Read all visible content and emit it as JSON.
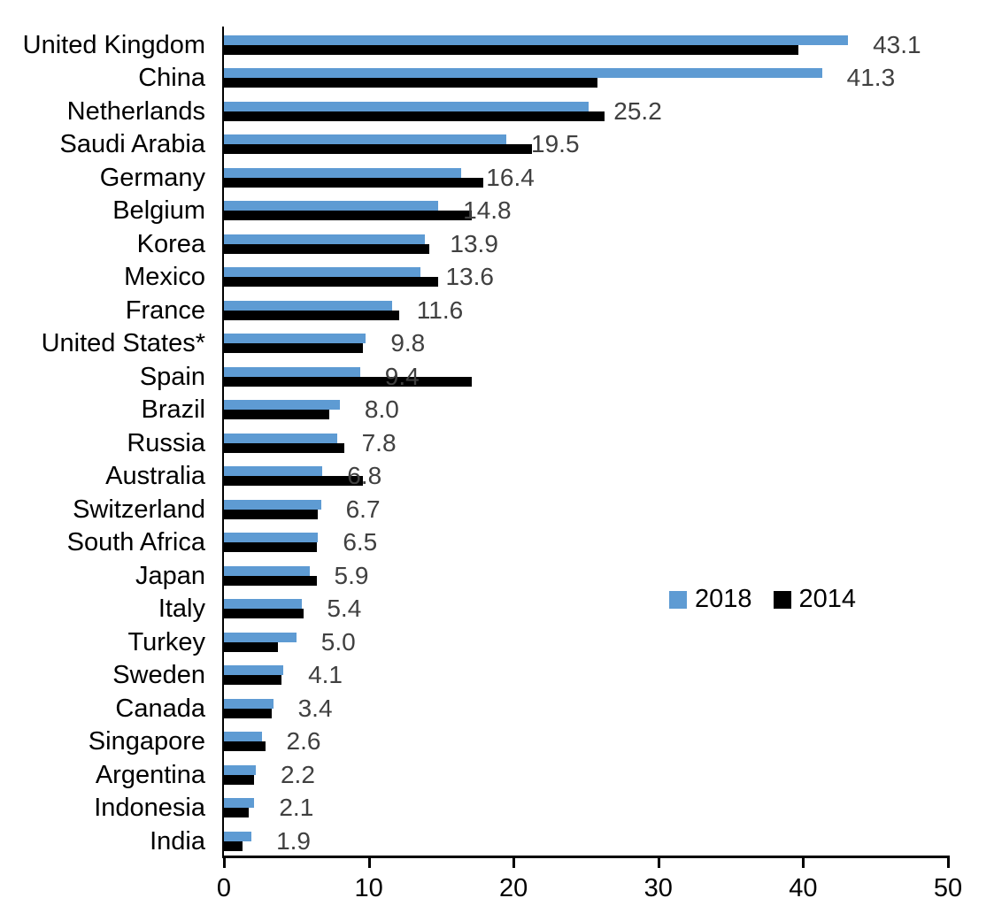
{
  "chart_data": {
    "type": "bar",
    "orientation": "horizontal",
    "title": "",
    "xlabel": "",
    "ylabel": "",
    "xlim": [
      0,
      50
    ],
    "x_ticks": [
      0,
      10,
      20,
      30,
      40,
      50
    ],
    "grid": false,
    "legend_position": "middle-right",
    "categories": [
      "United Kingdom",
      "China",
      "Netherlands",
      "Saudi Arabia",
      "Germany",
      "Belgium",
      "Korea",
      "Mexico",
      "France",
      "United States*",
      "Spain",
      "Brazil",
      "Russia",
      "Australia",
      "Switzerland",
      "South Africa",
      "Japan",
      "Italy",
      "Turkey",
      "Sweden",
      "Canada",
      "Singapore",
      "Argentina",
      "Indonesia",
      "India"
    ],
    "series": [
      {
        "name": "2018",
        "color": "#5E9BD3",
        "values": [
          43.1,
          41.3,
          25.2,
          19.5,
          16.4,
          14.8,
          13.9,
          13.6,
          11.6,
          9.8,
          9.4,
          8.0,
          7.8,
          6.8,
          6.7,
          6.5,
          5.9,
          5.4,
          5.0,
          4.1,
          3.4,
          2.6,
          2.2,
          2.1,
          1.9
        ],
        "data_labels": [
          "43.1",
          "41.3",
          "25.2",
          "19.5",
          "16.4",
          "14.8",
          "13.9",
          "13.6",
          "11.6",
          "9.8",
          "9.4",
          "8.0",
          "7.8",
          "6.8",
          "6.7",
          "6.5",
          "5.9",
          "5.4",
          "5.0",
          "4.1",
          "3.4",
          "2.6",
          "2.2",
          "2.1",
          "1.9"
        ]
      },
      {
        "name": "2014",
        "color": "#000000",
        "values": [
          39.7,
          25.8,
          26.3,
          21.3,
          17.9,
          17.1,
          14.2,
          14.8,
          12.1,
          9.6,
          17.1,
          7.3,
          8.3,
          9.6,
          6.5,
          6.4,
          6.4,
          5.5,
          3.7,
          4.0,
          3.3,
          2.9,
          2.1,
          1.7,
          1.3
        ],
        "data_labels": []
      }
    ]
  },
  "colors": {
    "background": "#ffffff",
    "axis": "#000000",
    "category_label": "#000000",
    "value_label": "#404040"
  },
  "legend": {
    "items": [
      {
        "label": "2018"
      },
      {
        "label": "2014"
      }
    ]
  }
}
